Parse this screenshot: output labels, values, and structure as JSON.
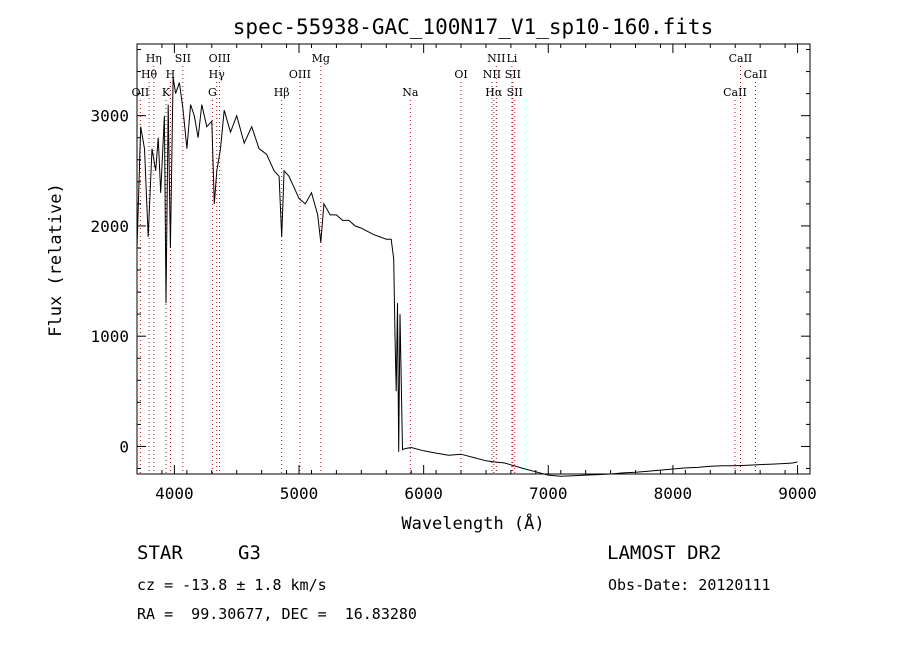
{
  "chart_data": {
    "type": "line",
    "title": "spec-55938-GAC_100N17_V1_sp10-160.fits",
    "xlabel": "Wavelength (Å)",
    "ylabel": "Flux (relative)",
    "xlim": [
      3700,
      9100
    ],
    "ylim": [
      -250,
      3650
    ],
    "x_ticks": [
      4000,
      5000,
      6000,
      7000,
      8000,
      9000
    ],
    "x_tick_labels": [
      "4000",
      "5000",
      "6000",
      "7000",
      "8000",
      "9000"
    ],
    "y_ticks": [
      0,
      1000,
      2000,
      3000
    ],
    "y_tick_labels": [
      "0",
      "1000",
      "2000",
      "3000"
    ],
    "grid": false,
    "legend": "none",
    "series": [
      {
        "x": [
          3700,
          3730,
          3760,
          3790,
          3820,
          3850,
          3870,
          3890,
          3920,
          3933,
          3950,
          3968,
          3990,
          4010,
          4040,
          4070,
          4100,
          4130,
          4160,
          4190,
          4220,
          4260,
          4300,
          4320,
          4340,
          4370,
          4400,
          4450,
          4500,
          4560,
          4620,
          4680,
          4740,
          4800,
          4840,
          4861,
          4880,
          4920,
          4960,
          5000,
          5050,
          5100,
          5150,
          5175,
          5200,
          5250,
          5300,
          5350,
          5400,
          5450,
          5500,
          5550,
          5600,
          5650,
          5700,
          5740,
          5760,
          5770,
          5780,
          5790,
          5800,
          5810,
          5830,
          5850,
          5900,
          6000,
          6100,
          6200,
          6300,
          6400,
          6500,
          6563,
          6650,
          6800,
          6900,
          7000,
          7100,
          7200,
          7300,
          7400,
          7500,
          7600,
          7700,
          7800,
          7900,
          8000,
          8100,
          8200,
          8300,
          8400,
          8500,
          8600,
          8700,
          8800,
          8900,
          8960,
          9000
        ],
        "y": [
          1800,
          2900,
          2700,
          1900,
          2700,
          2500,
          2800,
          2300,
          3000,
          1300,
          3100,
          1800,
          3350,
          3200,
          3300,
          3050,
          2700,
          3100,
          3000,
          2800,
          3100,
          2900,
          2950,
          2200,
          2500,
          2700,
          3050,
          2850,
          3000,
          2750,
          2900,
          2700,
          2650,
          2500,
          2450,
          1900,
          2500,
          2450,
          2350,
          2250,
          2200,
          2300,
          2100,
          1850,
          2200,
          2100,
          2100,
          2050,
          2050,
          2000,
          1980,
          1950,
          1920,
          1900,
          1880,
          1880,
          1700,
          1000,
          500,
          1300,
          -50,
          1200,
          -30,
          -20,
          -10,
          -40,
          -60,
          -80,
          -70,
          -100,
          -130,
          -140,
          -150,
          -200,
          -230,
          -260,
          -270,
          -265,
          -260,
          -255,
          -250,
          -240,
          -235,
          -225,
          -215,
          -205,
          -195,
          -190,
          -180,
          -175,
          -175,
          -170,
          -165,
          -160,
          -155,
          -150,
          -140
        ]
      }
    ],
    "spectral_lines": [
      {
        "label": "Hη",
        "x": 3835,
        "row": 0
      },
      {
        "label": "Hθ",
        "x": 3797,
        "row": 1
      },
      {
        "label": "OII",
        "x": 3727,
        "row": 2
      },
      {
        "label": "SII",
        "x": 4068,
        "row": 0
      },
      {
        "label": "H",
        "x": 3968,
        "row": 1
      },
      {
        "label": "K",
        "x": 3933,
        "row": 2
      },
      {
        "label": "OIII",
        "x": 4363,
        "row": 0
      },
      {
        "label": "Hγ",
        "x": 4340,
        "row": 1
      },
      {
        "label": "G",
        "x": 4305,
        "row": 2
      },
      {
        "label": "Mg",
        "x": 5175,
        "row": 0
      },
      {
        "label": "OIII",
        "x": 5007,
        "row": 1
      },
      {
        "label": "Hβ",
        "x": 4861,
        "row": 2
      },
      {
        "label": "Na",
        "x": 5893,
        "row": 2
      },
      {
        "label": "NII",
        "x": 6583,
        "row": 0
      },
      {
        "label": "Li",
        "x": 6708,
        "row": 0
      },
      {
        "label": "OI",
        "x": 6300,
        "row": 1
      },
      {
        "label": "NII",
        "x": 6548,
        "row": 1
      },
      {
        "label": "SII",
        "x": 6716,
        "row": 1
      },
      {
        "label": "Hα",
        "x": 6563,
        "row": 2
      },
      {
        "label": "SII",
        "x": 6731,
        "row": 2
      },
      {
        "label": "CaII",
        "x": 8542,
        "row": 0
      },
      {
        "label": "CaII",
        "x": 8662,
        "row": 1
      },
      {
        "label": "CaII",
        "x": 8498,
        "row": 2
      }
    ]
  },
  "info": {
    "star_label": "STAR",
    "spectral_type": "G3",
    "survey": "LAMOST DR2",
    "cz": "cz = -13.8 ± 1.8 km/s",
    "obs_date": "Obs-Date: 20120111",
    "radec": "RA =  99.30677, DEC =  16.83280"
  }
}
